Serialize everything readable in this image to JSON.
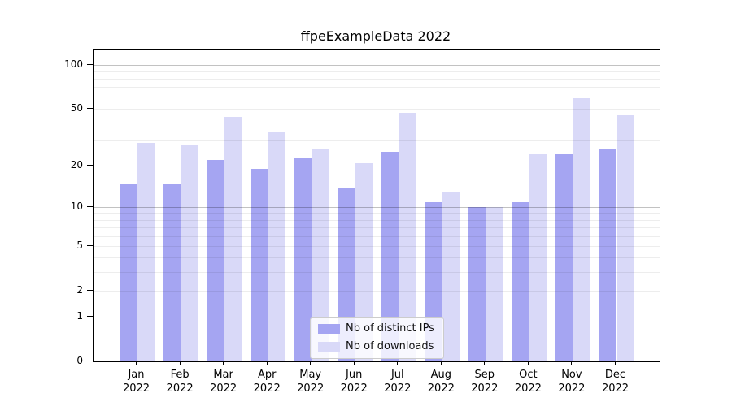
{
  "chart_data": {
    "type": "bar",
    "title": "ffpeExampleData 2022",
    "categories": [
      "Jan",
      "Feb",
      "Mar",
      "Apr",
      "May",
      "Jun",
      "Jul",
      "Aug",
      "Sep",
      "Oct",
      "Nov",
      "Dec"
    ],
    "year_label": "2022",
    "series": [
      {
        "name": "Nb of distinct IPs",
        "color": "#a5a5f2",
        "values": [
          15,
          15,
          22,
          19,
          23,
          14,
          25,
          11,
          10,
          11,
          24,
          26
        ]
      },
      {
        "name": "Nb of downloads",
        "color": "#d9d9f8",
        "values": [
          29,
          28,
          44,
          35,
          26,
          21,
          47,
          13,
          10,
          24,
          59,
          45
        ]
      }
    ],
    "xlabel": "",
    "ylabel": "",
    "yscale": "log1p",
    "ylim": [
      0,
      127.5
    ],
    "yticks": [
      0,
      1,
      2,
      5,
      10,
      20,
      50,
      100
    ],
    "major_gridlines": [
      1,
      10,
      100
    ],
    "minor_gridlines": [
      2,
      3,
      4,
      5,
      6,
      7,
      8,
      9,
      20,
      30,
      40,
      50,
      60,
      70,
      80,
      90
    ],
    "grid": "on",
    "legend_position": "lower center"
  }
}
